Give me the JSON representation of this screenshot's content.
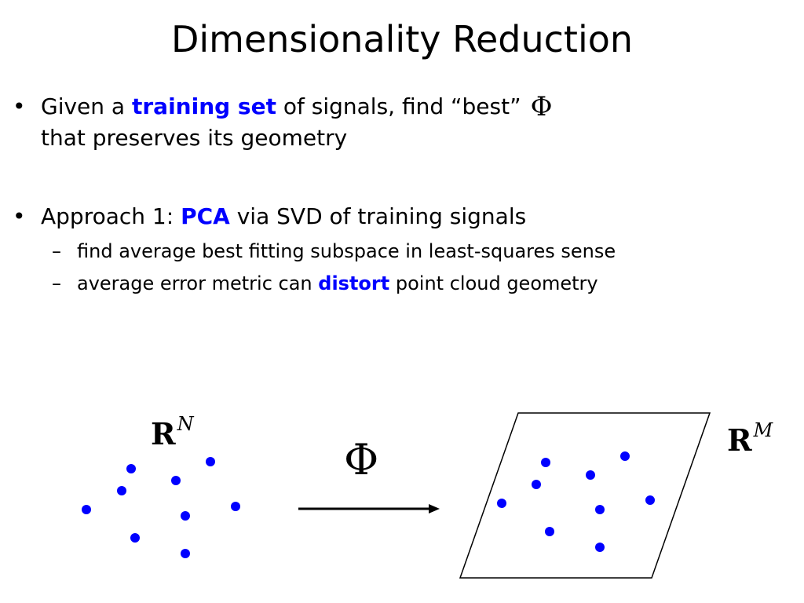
{
  "title": "Dimensionality Reduction",
  "bullets": [
    {
      "marker": "•",
      "pre": "Given a ",
      "emphasis": "training set",
      "post": " of signals, find “best”",
      "symbol": "Φ",
      "line2": "that preserves its geometry"
    },
    {
      "marker": "•",
      "pre": "Approach 1:  ",
      "emphasis": "PCA",
      "post": " via SVD of training signals",
      "sub": [
        {
          "marker": "–",
          "text": "find average best fitting subspace in least-squares sense"
        },
        {
          "marker": "–",
          "pre": "average error metric can ",
          "emphasis": "distort",
          "post": " point cloud geometry"
        }
      ]
    }
  ],
  "diagram": {
    "source_space": {
      "base": "R",
      "exponent": "N"
    },
    "target_space": {
      "base": "R",
      "exponent": "M"
    },
    "map_symbol": "Φ",
    "point_color": "#0000ff",
    "emphasis_color": "#0000ff"
  }
}
